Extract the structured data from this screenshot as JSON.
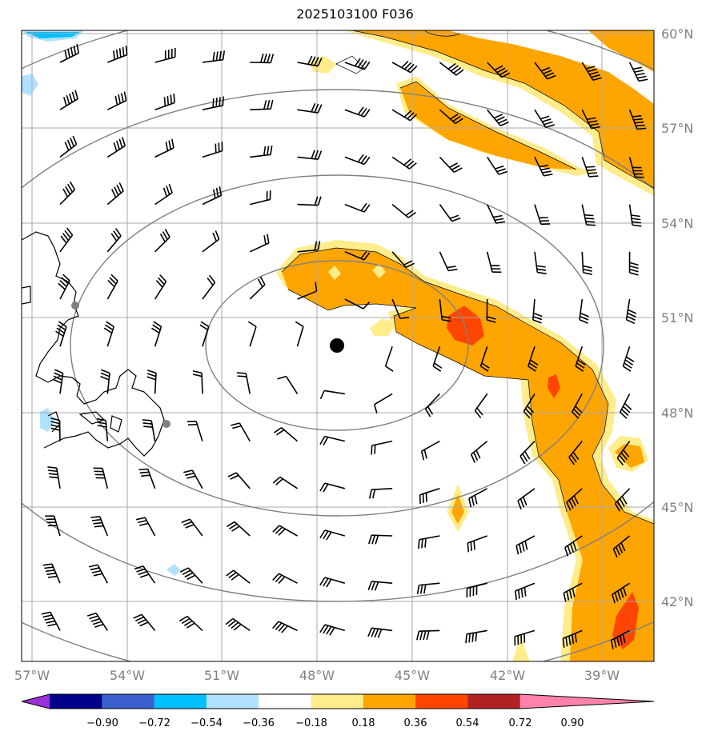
{
  "title": "2025103100 F036",
  "lat_labels": [
    "60°N",
    "57°N",
    "54°N",
    "51°N",
    "48°N",
    "45°N",
    "42°N"
  ],
  "lon_labels": [
    "57°W",
    "54°W",
    "51°W",
    "48°W",
    "45°W",
    "42°W",
    "39°W"
  ],
  "colorbar": {
    "ticks": [
      "−0.90",
      "−0.72",
      "−0.54",
      "−0.36",
      "−0.18",
      "0.18",
      "0.36",
      "0.54",
      "0.72",
      "0.90"
    ],
    "colors": [
      "#9b30d9",
      "#00008b",
      "#3a5fcd",
      "#00bfff",
      "#b0e2ff",
      "#ffffff",
      "#ffec8b",
      "#ffa500",
      "#ff4500",
      "#b22222",
      "#ff82ab"
    ]
  },
  "center_marker": {
    "lat": 50.0,
    "lon": -47.3
  },
  "colors": {
    "light_yellow": "#ffec8b",
    "orange": "#ffa500",
    "red_orange": "#ff4500",
    "light_blue": "#b0e2ff",
    "deep_sky_blue": "#00bfff",
    "grid": "#a9a9a9",
    "range_rings": "#808080"
  },
  "icons": [
    "wind-barb-icon",
    "storm-center-icon",
    "station-dot-icon"
  ]
}
